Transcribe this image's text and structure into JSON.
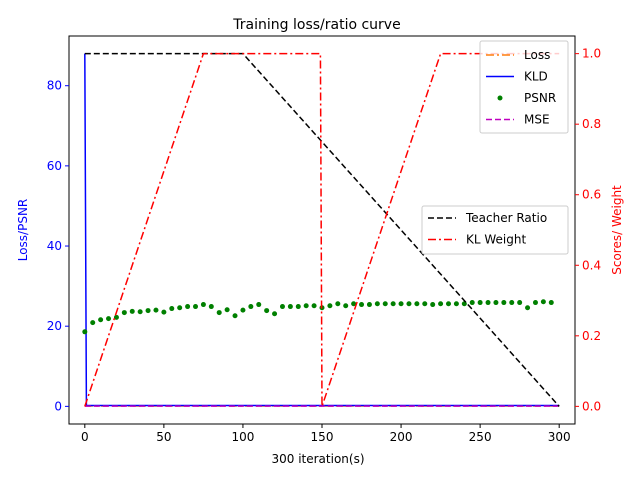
{
  "chart_data": {
    "type": "line",
    "title": "Training loss/ratio curve",
    "xlabel": "300 iteration(s)",
    "ylabel_left": "Loss/PSNR",
    "ylabel_right": "Scores/ Weight",
    "xlim": [
      -10,
      310
    ],
    "ylim_left": [
      -4.4,
      92.4
    ],
    "ylim_right": [
      -0.05,
      1.05
    ],
    "xticks": [
      0,
      50,
      100,
      150,
      200,
      250,
      300
    ],
    "yticks_left": [
      0,
      20,
      40,
      60,
      80
    ],
    "yticks_right": [
      0.0,
      0.2,
      0.4,
      0.6,
      0.8,
      1.0
    ],
    "axis_colors": {
      "left": "#0000ff",
      "right": "#ff0000"
    },
    "grid": false,
    "legend_left": {
      "placement": "top-right",
      "entries": [
        "Loss",
        "KLD",
        "PSNR",
        "MSE"
      ]
    },
    "legend_right": {
      "placement": "center-right",
      "entries": [
        "Teacher Ratio",
        "KL Weight"
      ]
    },
    "series_left": [
      {
        "name": "Loss",
        "color": "#ff7f0e",
        "style": "dash-dot",
        "x": [
          0,
          300
        ],
        "y": [
          0.1,
          0.1
        ]
      },
      {
        "name": "KLD",
        "color": "#0000ff",
        "style": "solid",
        "x": [
          0,
          1,
          300
        ],
        "y": [
          88,
          0.2,
          0.2
        ]
      },
      {
        "name": "PSNR",
        "color": "#008000",
        "style": "points",
        "x": [
          0,
          5,
          10,
          15,
          20,
          25,
          30,
          35,
          40,
          45,
          50,
          55,
          60,
          65,
          70,
          75,
          80,
          85,
          90,
          95,
          100,
          105,
          110,
          115,
          120,
          125,
          130,
          135,
          140,
          145,
          150,
          155,
          160,
          165,
          170,
          175,
          180,
          185,
          190,
          195,
          200,
          205,
          210,
          215,
          220,
          225,
          230,
          235,
          240,
          245,
          250,
          255,
          260,
          265,
          270,
          275,
          280,
          285,
          290,
          295
        ],
        "y": [
          18.6,
          20.9,
          21.6,
          21.9,
          22.2,
          23.4,
          23.7,
          23.6,
          23.9,
          24.0,
          23.5,
          24.4,
          24.6,
          24.9,
          24.9,
          25.4,
          24.9,
          23.4,
          24.1,
          22.6,
          24.0,
          24.9,
          25.4,
          23.9,
          23.1,
          24.9,
          24.9,
          24.9,
          25.1,
          25.1,
          24.6,
          25.1,
          25.6,
          25.1,
          25.6,
          25.4,
          25.4,
          25.6,
          25.6,
          25.6,
          25.6,
          25.6,
          25.6,
          25.6,
          25.4,
          25.6,
          25.6,
          25.6,
          25.6,
          25.9,
          25.9,
          25.9,
          25.9,
          25.9,
          25.9,
          25.9,
          24.6,
          25.9,
          26.1,
          25.9
        ]
      },
      {
        "name": "MSE",
        "color": "#bf00bf",
        "style": "dashed",
        "x": [
          0,
          300
        ],
        "y": [
          0.05,
          0.05
        ]
      }
    ],
    "series_right": [
      {
        "name": "Teacher Ratio",
        "color": "#000000",
        "style": "dashed",
        "x": [
          0,
          100,
          300
        ],
        "y": [
          1.0,
          1.0,
          0.0
        ]
      },
      {
        "name": "KL Weight",
        "color": "#ff0000",
        "style": "dash-dot",
        "x": [
          0,
          75,
          149,
          150,
          225,
          300
        ],
        "y": [
          0.0,
          1.0,
          1.0,
          0.0,
          1.0,
          1.0
        ]
      }
    ]
  }
}
